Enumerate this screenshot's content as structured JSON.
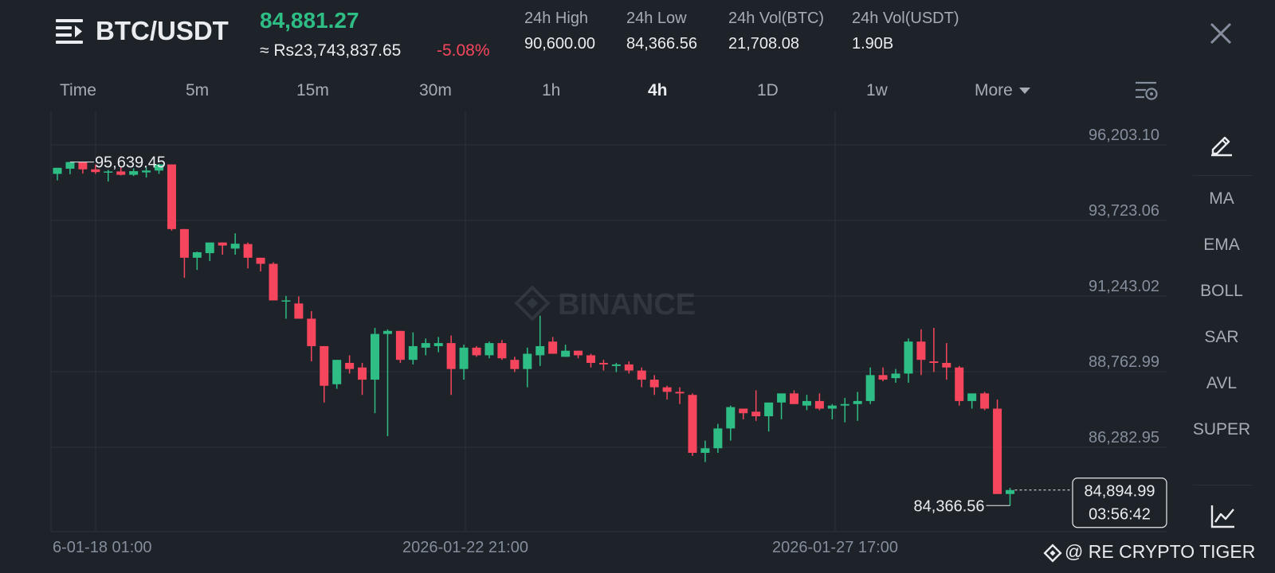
{
  "header": {
    "pair": "BTC/USDT",
    "last_price": "84,881.27",
    "approx_price": "≈ Rs23,743,837.65",
    "change_pct": "-5.08%",
    "stats": [
      {
        "label": "24h High",
        "value": "90,600.00"
      },
      {
        "label": "24h Low",
        "value": "84,366.56"
      },
      {
        "label": "24h Vol(BTC)",
        "value": "21,708.08"
      },
      {
        "label": "24h Vol(USDT)",
        "value": "1.90B"
      }
    ]
  },
  "tabs": [
    "Time",
    "5m",
    "15m",
    "30m",
    "1h",
    "4h",
    "1D",
    "1w",
    "More"
  ],
  "active_tab": "4h",
  "sidebar": [
    "MA",
    "EMA",
    "BOLL",
    "SAR",
    "AVL",
    "SUPER"
  ],
  "sidebar_icons": [
    "pencil-icon",
    "line-chart-icon"
  ],
  "watermark": "@ RE CRYPTO TIGER",
  "colors": {
    "up": "#2ebd85",
    "down": "#f6465d",
    "background": "#1e2329",
    "grid": "#2b3139",
    "muted": "#848e9c"
  },
  "chart_data": {
    "type": "candlestick",
    "y_ticks": [
      "96,203.10",
      "93,723.06",
      "91,243.02",
      "88,762.99",
      "86,282.95"
    ],
    "y_tick_values": [
      96203.1,
      93723.06,
      91243.02,
      88762.99,
      86282.95
    ],
    "x_ticks": [
      "6-01-18 01:00",
      "2026-01-22 21:00",
      "2026-01-27 17:00"
    ],
    "high_label": "95,639.45",
    "low_label": "84,366.56",
    "current_price": "84,894.99",
    "countdown": "03:56:42",
    "watermark_logo": "BINANCE",
    "candles": [
      {
        "o": 95250,
        "h": 95420,
        "l": 95040,
        "c": 95450
      },
      {
        "o": 95420,
        "h": 95640,
        "l": 95240,
        "c": 95640
      },
      {
        "o": 95640,
        "h": 95640,
        "l": 95260,
        "c": 95400
      },
      {
        "o": 95400,
        "h": 95560,
        "l": 95250,
        "c": 95310
      },
      {
        "o": 95300,
        "h": 95380,
        "l": 95000,
        "c": 95330
      },
      {
        "o": 95330,
        "h": 95460,
        "l": 95200,
        "c": 95220
      },
      {
        "o": 95220,
        "h": 95430,
        "l": 95180,
        "c": 95340
      },
      {
        "o": 95300,
        "h": 95460,
        "l": 95130,
        "c": 95360
      },
      {
        "o": 95360,
        "h": 95580,
        "l": 95250,
        "c": 95560
      },
      {
        "o": 95560,
        "h": 95560,
        "l": 93390,
        "c": 93440
      },
      {
        "o": 93440,
        "h": 93440,
        "l": 91840,
        "c": 92500
      },
      {
        "o": 92500,
        "h": 92700,
        "l": 92100,
        "c": 92680
      },
      {
        "o": 92650,
        "h": 92930,
        "l": 92390,
        "c": 93000
      },
      {
        "o": 93000,
        "h": 93000,
        "l": 92600,
        "c": 92900
      },
      {
        "o": 92800,
        "h": 93300,
        "l": 92600,
        "c": 92960
      },
      {
        "o": 92950,
        "h": 93000,
        "l": 92150,
        "c": 92500
      },
      {
        "o": 92500,
        "h": 92500,
        "l": 92050,
        "c": 92300
      },
      {
        "o": 92300,
        "h": 92350,
        "l": 91150,
        "c": 91100
      },
      {
        "o": 91100,
        "h": 91250,
        "l": 90500,
        "c": 91100
      },
      {
        "o": 91000,
        "h": 91230,
        "l": 90500,
        "c": 90500
      },
      {
        "o": 90500,
        "h": 90750,
        "l": 89100,
        "c": 89600
      },
      {
        "o": 89600,
        "h": 89600,
        "l": 87750,
        "c": 88300
      },
      {
        "o": 88350,
        "h": 89100,
        "l": 88200,
        "c": 89150
      },
      {
        "o": 89050,
        "h": 89300,
        "l": 88700,
        "c": 88850
      },
      {
        "o": 88900,
        "h": 89050,
        "l": 88000,
        "c": 88500
      },
      {
        "o": 88500,
        "h": 90200,
        "l": 87400,
        "c": 90000
      },
      {
        "o": 90000,
        "h": 90150,
        "l": 86650,
        "c": 90100
      },
      {
        "o": 90100,
        "h": 90100,
        "l": 89050,
        "c": 89150
      },
      {
        "o": 89150,
        "h": 90050,
        "l": 89000,
        "c": 89600
      },
      {
        "o": 89550,
        "h": 89850,
        "l": 89300,
        "c": 89700
      },
      {
        "o": 89600,
        "h": 89900,
        "l": 89400,
        "c": 89700
      },
      {
        "o": 89700,
        "h": 89950,
        "l": 88000,
        "c": 88850
      },
      {
        "o": 88850,
        "h": 89650,
        "l": 88500,
        "c": 89550
      },
      {
        "o": 89550,
        "h": 89600,
        "l": 89250,
        "c": 89300
      },
      {
        "o": 89300,
        "h": 89750,
        "l": 89200,
        "c": 89700
      },
      {
        "o": 89700,
        "h": 89800,
        "l": 89150,
        "c": 89200
      },
      {
        "o": 89150,
        "h": 89250,
        "l": 88750,
        "c": 88850
      },
      {
        "o": 88850,
        "h": 89550,
        "l": 88250,
        "c": 89350
      },
      {
        "o": 89300,
        "h": 90600,
        "l": 88950,
        "c": 89600
      },
      {
        "o": 89750,
        "h": 89900,
        "l": 89350,
        "c": 89350
      },
      {
        "o": 89250,
        "h": 89650,
        "l": 89250,
        "c": 89450
      },
      {
        "o": 89450,
        "h": 89450,
        "l": 89200,
        "c": 89300
      },
      {
        "o": 89300,
        "h": 89350,
        "l": 88900,
        "c": 89050
      },
      {
        "o": 89050,
        "h": 89150,
        "l": 88800,
        "c": 89000
      },
      {
        "o": 88950,
        "h": 89050,
        "l": 88750,
        "c": 89000
      },
      {
        "o": 89000,
        "h": 89100,
        "l": 88700,
        "c": 88800
      },
      {
        "o": 88800,
        "h": 88900,
        "l": 88250,
        "c": 88500
      },
      {
        "o": 88500,
        "h": 88650,
        "l": 88000,
        "c": 88250
      },
      {
        "o": 88250,
        "h": 88300,
        "l": 87850,
        "c": 88100
      },
      {
        "o": 88100,
        "h": 88250,
        "l": 87700,
        "c": 88050
      },
      {
        "o": 88000,
        "h": 88050,
        "l": 86000,
        "c": 86100
      },
      {
        "o": 86100,
        "h": 86500,
        "l": 85800,
        "c": 86250
      },
      {
        "o": 86250,
        "h": 87050,
        "l": 86100,
        "c": 86900
      },
      {
        "o": 86900,
        "h": 87650,
        "l": 86500,
        "c": 87600
      },
      {
        "o": 87550,
        "h": 87550,
        "l": 87200,
        "c": 87400
      },
      {
        "o": 87450,
        "h": 88150,
        "l": 87150,
        "c": 87300
      },
      {
        "o": 87300,
        "h": 87750,
        "l": 86800,
        "c": 87750
      },
      {
        "o": 87750,
        "h": 88000,
        "l": 87200,
        "c": 88050
      },
      {
        "o": 88050,
        "h": 88150,
        "l": 87700,
        "c": 87700
      },
      {
        "o": 87650,
        "h": 88000,
        "l": 87500,
        "c": 87800
      },
      {
        "o": 87800,
        "h": 88050,
        "l": 87500,
        "c": 87550
      },
      {
        "o": 87550,
        "h": 87700,
        "l": 87200,
        "c": 87650
      },
      {
        "o": 87650,
        "h": 87900,
        "l": 87100,
        "c": 87700
      },
      {
        "o": 87700,
        "h": 88100,
        "l": 87150,
        "c": 87800
      },
      {
        "o": 87800,
        "h": 88900,
        "l": 87700,
        "c": 88650
      },
      {
        "o": 88650,
        "h": 88900,
        "l": 88450,
        "c": 88500
      },
      {
        "o": 88550,
        "h": 88850,
        "l": 88400,
        "c": 88700
      },
      {
        "o": 88700,
        "h": 89850,
        "l": 88400,
        "c": 89750
      },
      {
        "o": 89750,
        "h": 90150,
        "l": 88650,
        "c": 89150
      },
      {
        "o": 89100,
        "h": 90200,
        "l": 88750,
        "c": 89050
      },
      {
        "o": 89050,
        "h": 89700,
        "l": 88500,
        "c": 88900
      },
      {
        "o": 88900,
        "h": 88950,
        "l": 87650,
        "c": 87800
      },
      {
        "o": 87800,
        "h": 88000,
        "l": 87550,
        "c": 88050
      },
      {
        "o": 88050,
        "h": 88100,
        "l": 87500,
        "c": 87550
      },
      {
        "o": 87550,
        "h": 87850,
        "l": 84750,
        "c": 84750
      },
      {
        "o": 84750,
        "h": 84950,
        "l": 84370,
        "c": 84880
      }
    ]
  }
}
